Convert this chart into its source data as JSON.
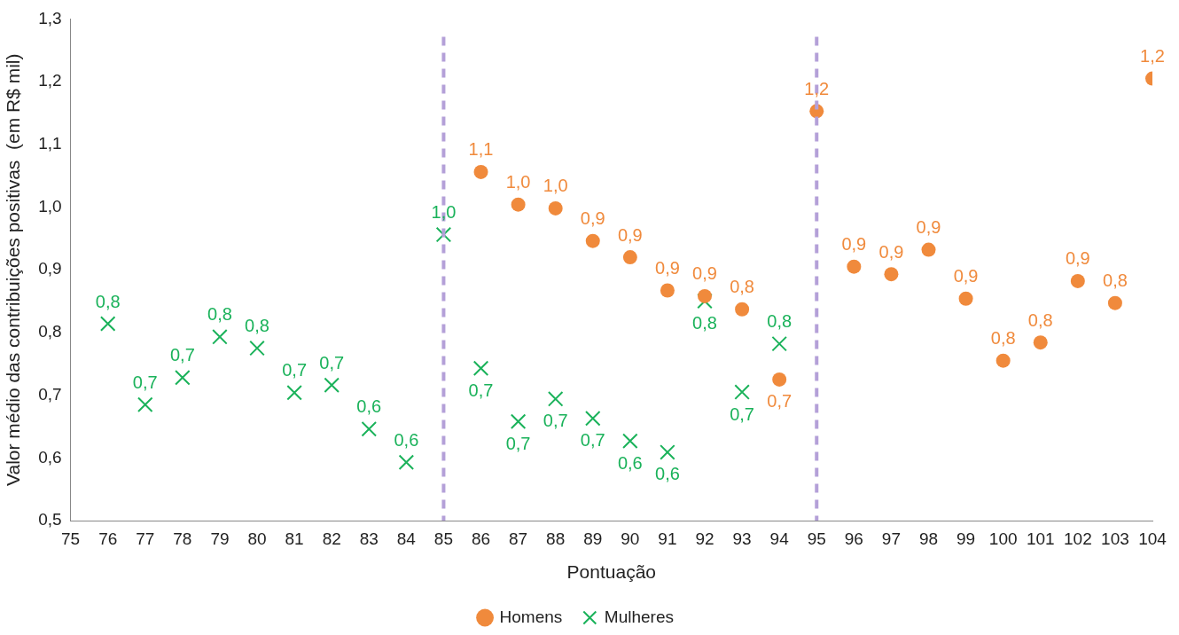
{
  "chart_data": {
    "type": "scatter",
    "xlabel": "Pontuação",
    "ylabel": "Valor médio das contribuições positivas  (em R$ mil)",
    "xlim": [
      75,
      104
    ],
    "xticks": [
      75,
      76,
      77,
      78,
      79,
      80,
      81,
      82,
      83,
      84,
      85,
      86,
      87,
      88,
      89,
      90,
      91,
      92,
      93,
      94,
      95,
      96,
      97,
      98,
      99,
      100,
      101,
      102,
      103,
      104
    ],
    "ylim": [
      0.5,
      1.3
    ],
    "yticks": [
      {
        "value": 0.5,
        "label": "0,5"
      },
      {
        "value": 0.6,
        "label": "0,6"
      },
      {
        "value": 0.7,
        "label": "0,7"
      },
      {
        "value": 0.8,
        "label": "0,8"
      },
      {
        "value": 0.9,
        "label": "0,9"
      },
      {
        "value": 1.0,
        "label": "1,0"
      },
      {
        "value": 1.1,
        "label": "1,1"
      },
      {
        "value": 1.2,
        "label": "1,2"
      },
      {
        "value": 1.3,
        "label": "1,3"
      }
    ],
    "grid": false,
    "legend": "bottom",
    "ref_lines": [
      {
        "axis": "x",
        "value": 85,
        "color": "#b4a0d8",
        "line_style": "dashed"
      },
      {
        "axis": "x",
        "value": 95,
        "color": "#b4a0d8",
        "line_style": "dashed"
      }
    ],
    "series": [
      {
        "name": "Homens",
        "color": "#f08a3c",
        "marker": "circle",
        "x": [
          86,
          87,
          88,
          89,
          90,
          91,
          92,
          93,
          94,
          95,
          96,
          97,
          98,
          99,
          100,
          101,
          102,
          103,
          104
        ],
        "values": [
          1.056,
          1.004,
          0.998,
          0.946,
          0.92,
          0.867,
          0.858,
          0.837,
          0.725,
          1.153,
          0.905,
          0.893,
          0.932,
          0.854,
          0.755,
          0.784,
          0.882,
          0.847,
          1.205
        ],
        "value_labels": [
          "1,1",
          "1,0",
          "1,0",
          "0,9",
          "0,9",
          "0,9",
          "0,9",
          "0,8",
          "0,7",
          "1,2",
          "0,9",
          "0,9",
          "0,9",
          "0,9",
          "0,8",
          "0,8",
          "0,9",
          "0,8",
          "1,2"
        ]
      },
      {
        "name": "Mulheres",
        "color": "#1ab25a",
        "marker": "cross",
        "x": [
          76,
          77,
          78,
          79,
          80,
          81,
          82,
          83,
          84,
          85,
          86,
          87,
          88,
          89,
          90,
          91,
          92,
          93,
          94
        ],
        "values": [
          0.814,
          0.685,
          0.728,
          0.793,
          0.775,
          0.704,
          0.716,
          0.646,
          0.593,
          0.956,
          0.743,
          0.658,
          0.694,
          0.663,
          0.627,
          0.609,
          0.85,
          0.705,
          0.782
        ],
        "value_labels": [
          "0,8",
          "0,7",
          "0,7",
          "0,8",
          "0,8",
          "0,7",
          "0,7",
          "0,6",
          "0,6",
          "1,0",
          "0,7",
          "0,7",
          "0,7",
          "0,7",
          "0,6",
          "0,6",
          "0,8",
          "0,7",
          "0,8"
        ]
      }
    ]
  }
}
